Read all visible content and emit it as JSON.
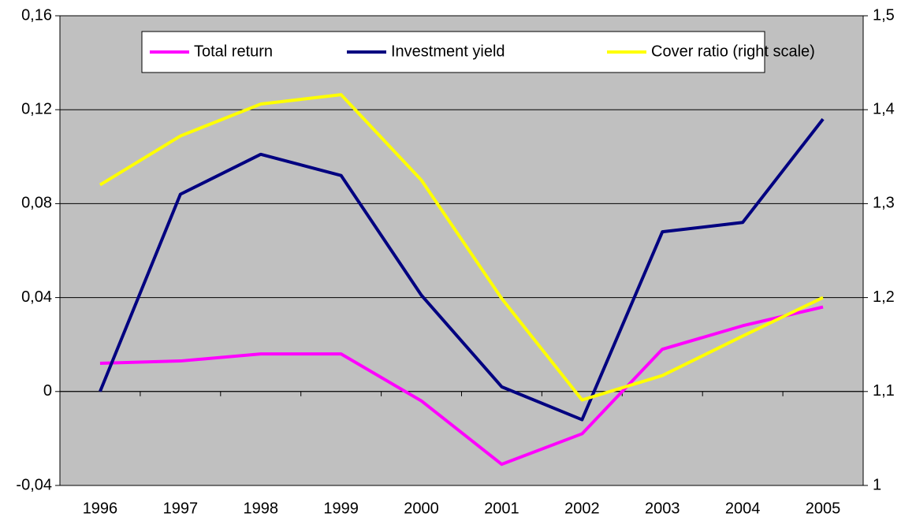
{
  "chart_data": {
    "type": "line",
    "categories": [
      "1996",
      "1997",
      "1998",
      "1999",
      "2000",
      "2001",
      "2002",
      "2003",
      "2004",
      "2005"
    ],
    "series": [
      {
        "name": "Total return",
        "color": "#ff00ff",
        "values": [
          0.012,
          0.013,
          0.016,
          0.016,
          -0.004,
          -0.031,
          -0.018,
          0.018,
          0.028,
          0.036
        ]
      },
      {
        "name": "Investment yield",
        "color": "#000080",
        "values": [
          0,
          0.084,
          0.101,
          0.092,
          0.041,
          0.002,
          -0.012,
          0.068,
          0.072,
          0.116
        ]
      },
      {
        "name": "Cover ratio (right scale)",
        "color": "#ffff00",
        "axis": "y2",
        "values": [
          1.32,
          1.372,
          1.406,
          1.416,
          1.325,
          1.199,
          1.091,
          1.117,
          1.159,
          1.2
        ]
      }
    ],
    "ylim": [
      -0.04,
      0.16
    ],
    "yticks": [
      {
        "value": -0.04,
        "label": "-0,04"
      },
      0,
      {
        "value": 0.04,
        "label": "0,04"
      },
      {
        "value": 0.08,
        "label": "0,08"
      },
      {
        "value": 0.12,
        "label": "0,12"
      },
      {
        "value": 0.16,
        "label": "0,16"
      }
    ],
    "y2lim": [
      1,
      1.5
    ],
    "y2ticks": [
      1,
      {
        "value": 1.1,
        "label": "1,1"
      },
      {
        "value": 1.2,
        "label": "1,2"
      },
      {
        "value": 1.3,
        "label": "1,3"
      },
      {
        "value": 1.4,
        "label": "1,4"
      },
      {
        "value": 1.5,
        "label": "1,5"
      }
    ],
    "grid": true,
    "legend": "top",
    "background": "#c0c0c0"
  }
}
